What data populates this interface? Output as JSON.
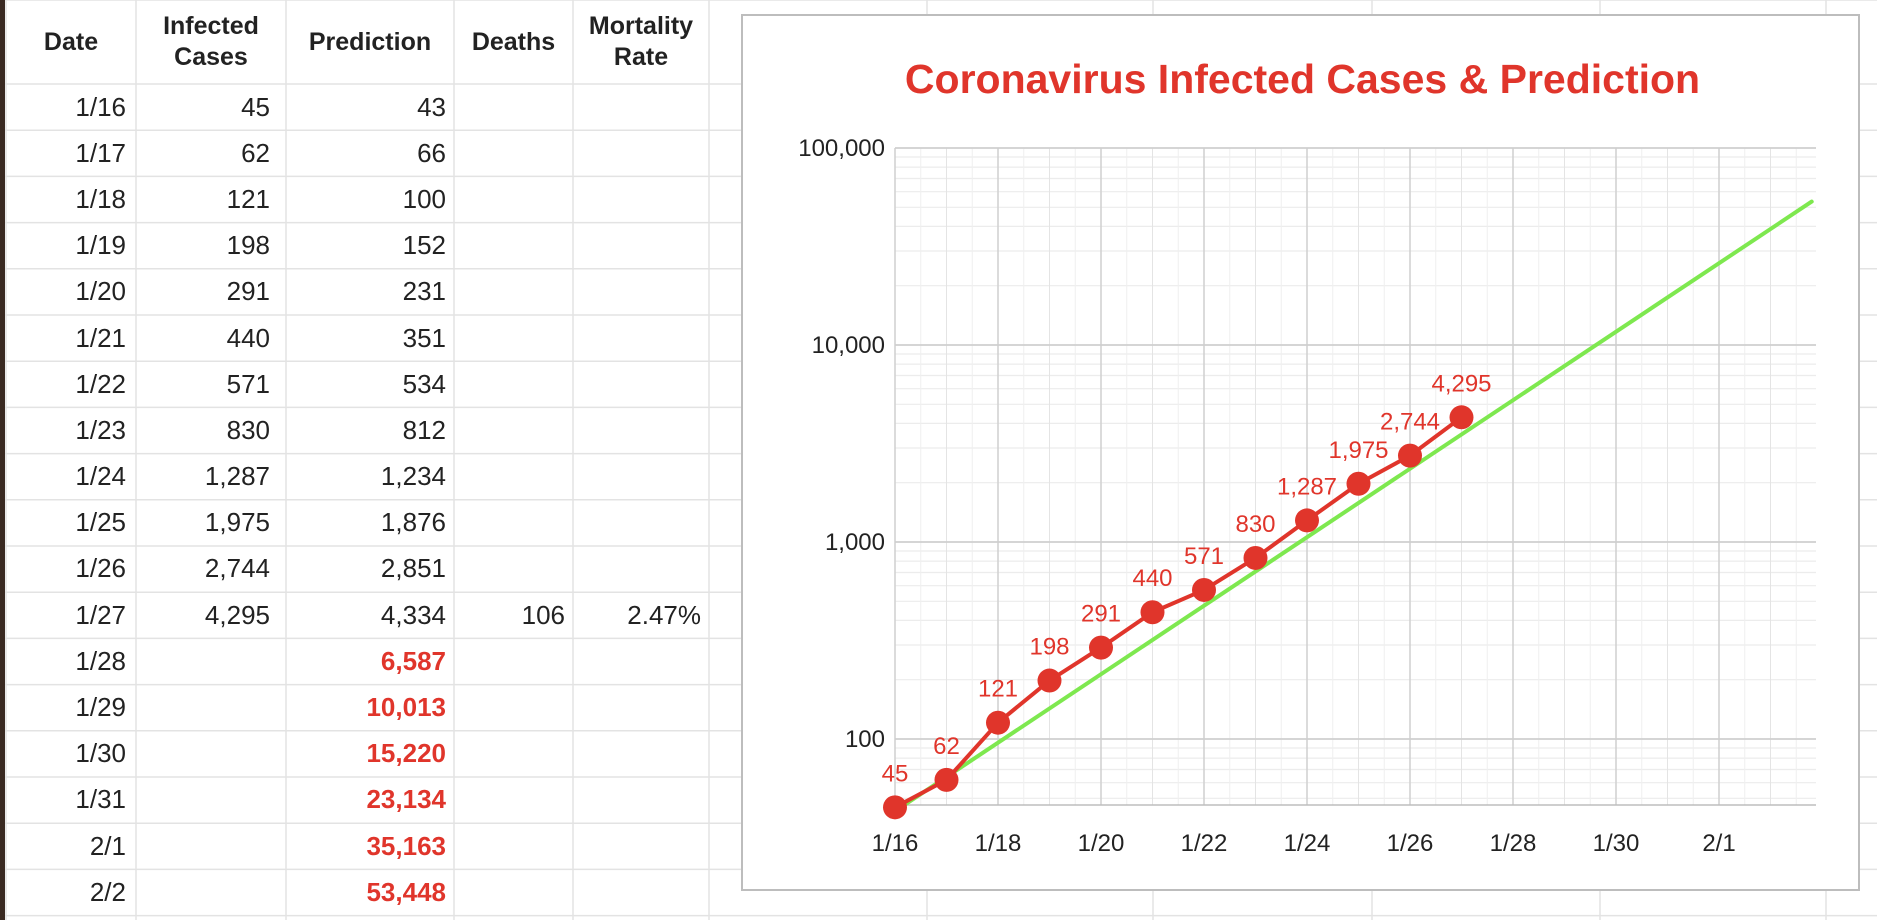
{
  "table": {
    "headers": {
      "date": "Date",
      "infected_line1": "Infected",
      "infected_line2": "Cases",
      "prediction": "Prediction",
      "deaths": "Deaths",
      "mortality_line1": "Mortality",
      "mortality_line2": "Rate"
    },
    "rows": [
      {
        "date": "1/16",
        "infected": "45",
        "prediction": "43",
        "deaths": "",
        "mortality": "",
        "predicted": false
      },
      {
        "date": "1/17",
        "infected": "62",
        "prediction": "66",
        "deaths": "",
        "mortality": "",
        "predicted": false
      },
      {
        "date": "1/18",
        "infected": "121",
        "prediction": "100",
        "deaths": "",
        "mortality": "",
        "predicted": false
      },
      {
        "date": "1/19",
        "infected": "198",
        "prediction": "152",
        "deaths": "",
        "mortality": "",
        "predicted": false
      },
      {
        "date": "1/20",
        "infected": "291",
        "prediction": "231",
        "deaths": "",
        "mortality": "",
        "predicted": false
      },
      {
        "date": "1/21",
        "infected": "440",
        "prediction": "351",
        "deaths": "",
        "mortality": "",
        "predicted": false
      },
      {
        "date": "1/22",
        "infected": "571",
        "prediction": "534",
        "deaths": "",
        "mortality": "",
        "predicted": false
      },
      {
        "date": "1/23",
        "infected": "830",
        "prediction": "812",
        "deaths": "",
        "mortality": "",
        "predicted": false
      },
      {
        "date": "1/24",
        "infected": "1,287",
        "prediction": "1,234",
        "deaths": "",
        "mortality": "",
        "predicted": false
      },
      {
        "date": "1/25",
        "infected": "1,975",
        "prediction": "1,876",
        "deaths": "",
        "mortality": "",
        "predicted": false
      },
      {
        "date": "1/26",
        "infected": "2,744",
        "prediction": "2,851",
        "deaths": "",
        "mortality": "",
        "predicted": false
      },
      {
        "date": "1/27",
        "infected": "4,295",
        "prediction": "4,334",
        "deaths": "106",
        "mortality": "2.47%",
        "predicted": false
      },
      {
        "date": "1/28",
        "infected": "",
        "prediction": "6,587",
        "deaths": "",
        "mortality": "",
        "predicted": true
      },
      {
        "date": "1/29",
        "infected": "",
        "prediction": "10,013",
        "deaths": "",
        "mortality": "",
        "predicted": true
      },
      {
        "date": "1/30",
        "infected": "",
        "prediction": "15,220",
        "deaths": "",
        "mortality": "",
        "predicted": true
      },
      {
        "date": "1/31",
        "infected": "",
        "prediction": "23,134",
        "deaths": "",
        "mortality": "",
        "predicted": true
      },
      {
        "date": "2/1",
        "infected": "",
        "prediction": "35,163",
        "deaths": "",
        "mortality": "",
        "predicted": true
      },
      {
        "date": "2/2",
        "infected": "",
        "prediction": "53,448",
        "deaths": "",
        "mortality": "",
        "predicted": true
      }
    ]
  },
  "colors": {
    "accent_red": "#e0352b",
    "trend_green": "#7ee84f",
    "grid": "#d9d9d9",
    "sheet_grid": "#e3e3e3"
  },
  "chart_data": {
    "type": "line",
    "title": "Coronavirus Infected Cases & Prediction",
    "x_scale": "date",
    "y_scale": "log",
    "ylim": [
      40,
      100000
    ],
    "yticks": [
      100,
      1000,
      10000,
      100000
    ],
    "ytick_labels": [
      "100",
      "1,000",
      "10,000",
      "100,000"
    ],
    "xticks": [
      "1/16",
      "1/18",
      "1/20",
      "1/22",
      "1/24",
      "1/26",
      "1/28",
      "1/30",
      "2/1"
    ],
    "x_range_days": [
      0,
      17.8
    ],
    "series": [
      {
        "name": "Infected Cases",
        "color": "#e0352b",
        "style": "line-markers",
        "x": [
          0,
          1,
          2,
          3,
          4,
          5,
          6,
          7,
          8,
          9,
          10,
          11
        ],
        "values": [
          45,
          62,
          121,
          198,
          291,
          440,
          571,
          830,
          1287,
          1975,
          2744,
          4295
        ],
        "labels": [
          "45",
          "62",
          "121",
          "198",
          "291",
          "440",
          "571",
          "830",
          "1,287",
          "1,975",
          "2,744",
          "4,295"
        ]
      },
      {
        "name": "Prediction",
        "color": "#7ee84f",
        "style": "line",
        "x": [
          0,
          17.8
        ],
        "values": [
          43,
          53448
        ]
      }
    ],
    "grid": true,
    "legend": "none"
  }
}
